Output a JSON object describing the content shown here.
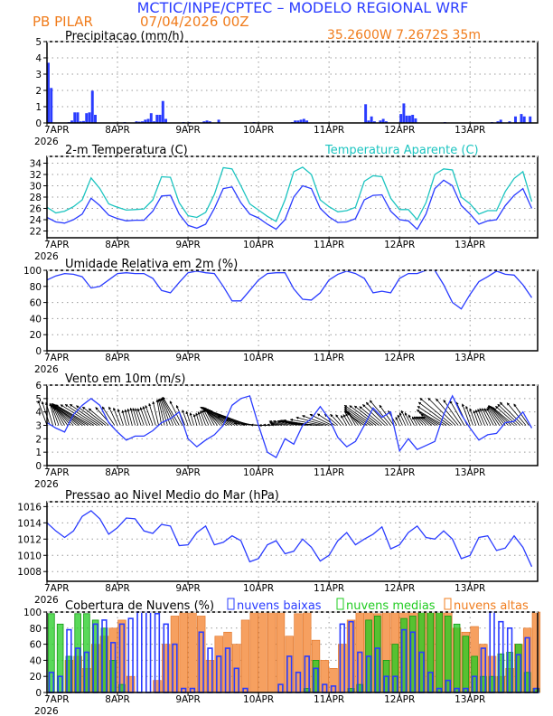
{
  "header": {
    "title": "MCTIC/INPE/CPTEC – MODELO REGIONAL WRF",
    "station": "PB PILAR",
    "run": "07/04/2026 00Z",
    "location": "35.2600W 7.2672S 35m"
  },
  "colors": {
    "blue": "#2a3cff",
    "cyan": "#1cc4c0",
    "orange": "#f07c1c",
    "orange_fill": "#f6a060",
    "green": "#22cc22",
    "title_blue": "#2a3cff",
    "title_orange": "#f07c1c"
  },
  "x_axis": {
    "unit": "hours since 07APR 00Z",
    "range": [
      0,
      167
    ],
    "tick_labels": [
      "7APR",
      "8APR",
      "9APR",
      "10APR",
      "11APR",
      "12APR",
      "13APR"
    ],
    "year_label": "2026"
  },
  "chart_data": [
    {
      "id": "precip",
      "type": "bar",
      "title": "Precipitacao (mm/h)",
      "ylim": [
        0,
        5
      ],
      "yticks": [
        0,
        1,
        2,
        3,
        4,
        5
      ],
      "series": [
        {
          "points": [
            [
              0,
              3.7
            ],
            [
              1,
              2.15
            ],
            [
              7,
              0.05
            ],
            [
              8,
              0.15
            ],
            [
              9,
              0.65
            ],
            [
              10,
              0.65
            ],
            [
              11,
              0.1
            ],
            [
              12,
              0.12
            ],
            [
              13,
              0.6
            ],
            [
              14,
              0.65
            ],
            [
              15,
              1.98
            ],
            [
              16,
              0.5
            ],
            [
              26,
              0.05
            ],
            [
              30,
              0.1
            ],
            [
              31,
              0.08
            ],
            [
              32,
              0.1
            ],
            [
              33,
              0.2
            ],
            [
              34,
              0.25
            ],
            [
              35,
              0.6
            ],
            [
              36,
              0.1
            ],
            [
              37,
              0.5
            ],
            [
              38,
              0.5
            ],
            [
              39,
              1.35
            ],
            [
              40,
              0.25
            ],
            [
              46,
              0.05
            ],
            [
              48,
              0.05
            ],
            [
              53,
              0.1
            ],
            [
              54,
              0.15
            ],
            [
              55,
              0.1
            ],
            [
              58,
              0.2
            ],
            [
              70,
              0.05
            ],
            [
              83,
              0.05
            ],
            [
              84,
              0.15
            ],
            [
              85,
              0.15
            ],
            [
              86,
              0.2
            ],
            [
              87,
              0.25
            ],
            [
              88,
              0.15
            ],
            [
              108,
              1.15
            ],
            [
              109,
              0.15
            ],
            [
              110,
              0.4
            ],
            [
              111,
              0.1
            ],
            [
              113,
              0.15
            ],
            [
              114,
              0.25
            ],
            [
              115,
              0.1
            ],
            [
              120,
              0.55
            ],
            [
              121,
              1.2
            ],
            [
              122,
              0.45
            ],
            [
              123,
              0.45
            ],
            [
              124,
              0.5
            ],
            [
              125,
              0.28
            ],
            [
              135,
              0.05
            ],
            [
              151,
              0.05
            ],
            [
              153,
              0.1
            ],
            [
              154,
              0.2
            ],
            [
              157,
              0.1
            ],
            [
              159,
              0.4
            ],
            [
              161,
              0.55
            ],
            [
              162,
              0.4
            ],
            [
              164,
              0.4
            ]
          ]
        }
      ]
    },
    {
      "id": "temp",
      "type": "line",
      "title": "2-m Temperatura (C)",
      "ylim": [
        20.8,
        35.2
      ],
      "yticks": [
        22,
        24,
        26,
        28,
        30,
        32,
        34
      ],
      "step_hours": 3,
      "series": [
        {
          "name": "2-m Temperatura (C)",
          "color": "blue",
          "values": [
            24.4,
            23.6,
            23.4,
            24.0,
            25.0,
            27.8,
            26.5,
            24.8,
            24.2,
            23.8,
            23.9,
            23.9,
            25.5,
            28.2,
            28.3,
            25.0,
            23.0,
            22.5,
            23.2,
            26.0,
            29.5,
            29.8,
            27.0,
            25.0,
            24.3,
            23.2,
            22.3,
            24.0,
            28.0,
            30.0,
            29.5,
            26.0,
            24.5,
            23.5,
            23.6,
            24.2,
            27.5,
            28.3,
            28.4,
            25.5,
            24.0,
            23.8,
            22.3,
            25.0,
            29.5,
            31.0,
            30.0,
            26.5,
            25.0,
            23.2,
            23.8,
            24.0,
            26.5,
            28.3,
            29.5,
            26.0
          ]
        },
        {
          "name": "Temperatura Aparente (C)",
          "color": "cyan",
          "values": [
            26.2,
            25.2,
            25.5,
            26.3,
            27.5,
            31.4,
            29.5,
            26.8,
            26.2,
            25.7,
            25.8,
            25.9,
            27.5,
            31.6,
            31.5,
            27.0,
            24.7,
            24.4,
            25.3,
            28.5,
            33.2,
            33.0,
            30.0,
            26.8,
            25.7,
            24.6,
            23.7,
            27.5,
            32.5,
            33.3,
            32.0,
            27.5,
            26.3,
            25.4,
            25.6,
            26.2,
            30.8,
            31.8,
            31.6,
            27.8,
            25.8,
            25.8,
            24.0,
            27.0,
            32.0,
            33.0,
            32.8,
            28.0,
            26.8,
            25.0,
            25.6,
            25.6,
            29.0,
            31.3,
            32.5,
            27.2
          ]
        }
      ]
    },
    {
      "id": "rh",
      "type": "line",
      "title": "Umidade Relativa em 2m (%)",
      "ylim": [
        0,
        100
      ],
      "yticks": [
        0,
        20,
        40,
        60,
        80,
        100
      ],
      "step_hours": 3,
      "series": [
        {
          "color": "blue",
          "values": [
            88,
            93,
            96,
            95,
            92,
            78,
            80,
            88,
            96,
            97,
            96,
            96,
            90,
            75,
            72,
            85,
            97,
            99,
            97,
            96,
            80,
            62,
            62,
            75,
            88,
            96,
            97,
            97,
            77,
            64,
            63,
            72,
            88,
            95,
            99,
            96,
            90,
            72,
            74,
            72,
            90,
            96,
            96,
            100,
            100,
            82,
            60,
            52,
            70,
            86,
            92,
            99,
            95,
            94,
            82,
            66
          ]
        }
      ]
    },
    {
      "id": "wind",
      "type": "line",
      "title": "Vento em 10m (m/s)",
      "ylim": [
        0,
        6
      ],
      "yticks": [
        0,
        1,
        2,
        3,
        4,
        5,
        6
      ],
      "step_hours": 3,
      "series": [
        {
          "name": "speed",
          "color": "blue",
          "values": [
            3.2,
            2.8,
            2.5,
            3.8,
            4.5,
            5.0,
            4.5,
            3.2,
            2.5,
            1.9,
            2.2,
            2.2,
            2.6,
            3.2,
            3.5,
            4.0,
            2.0,
            1.4,
            1.9,
            2.3,
            3.0,
            4.5,
            5.0,
            5.2,
            3.0,
            1.0,
            0.6,
            2.0,
            1.6,
            3.0,
            3.5,
            4.4,
            3.5,
            2.1,
            1.4,
            1.8,
            3.0,
            4.3,
            3.6,
            4.0,
            1.1,
            2.0,
            1.2,
            1.5,
            1.8,
            3.8,
            5.2,
            3.8,
            2.8,
            1.9,
            2.3,
            2.4,
            3.2,
            3.3,
            4.0,
            2.8
          ]
        },
        {
          "name": "direction_deg",
          "values": [
            160,
            165,
            150,
            135,
            125,
            120,
            125,
            130,
            155,
            165,
            165,
            160,
            160,
            170,
            160,
            150,
            160,
            165,
            160,
            150,
            130,
            120,
            115,
            110,
            95,
            90,
            100,
            105,
            110,
            100,
            100,
            95,
            110,
            130,
            150,
            150,
            125,
            125,
            130,
            140,
            155,
            155,
            150,
            135,
            125,
            120,
            130,
            145,
            160,
            160,
            155,
            150,
            140,
            130,
            135,
            150
          ]
        }
      ]
    },
    {
      "id": "pressure",
      "type": "line",
      "title": "Pressao ao Nivel Medio do Mar (hPa)",
      "ylim": [
        1006.8,
        1016.6
      ],
      "yticks": [
        1008,
        1010,
        1012,
        1014,
        1016
      ],
      "step_hours": 3,
      "series": [
        {
          "color": "blue",
          "values": [
            1014.0,
            1013.0,
            1012.2,
            1013.0,
            1014.8,
            1015.5,
            1014.5,
            1012.6,
            1013.4,
            1014.6,
            1014.5,
            1013.0,
            1012.7,
            1013.8,
            1013.6,
            1011.2,
            1011.3,
            1012.8,
            1013.6,
            1011.3,
            1011.6,
            1012.4,
            1011.8,
            1009.2,
            1009.6,
            1011.3,
            1011.8,
            1010.2,
            1010.5,
            1012.0,
            1011.0,
            1009.3,
            1010.0,
            1011.8,
            1012.8,
            1011.3,
            1012.0,
            1012.6,
            1013.5,
            1010.8,
            1011.3,
            1012.8,
            1013.6,
            1012.2,
            1012.0,
            1013.0,
            1012.0,
            1009.6,
            1010.0,
            1012.2,
            1012.4,
            1010.6,
            1010.9,
            1012.4,
            1011.0,
            1008.6
          ]
        }
      ]
    },
    {
      "id": "clouds",
      "type": "bar",
      "title": "Cobertura de Nuvens (%)",
      "ylim": [
        0,
        100
      ],
      "yticks": [
        0,
        20,
        40,
        60,
        80,
        100
      ],
      "step_hours": 3,
      "series": [
        {
          "name": "nuvens altas",
          "color": "orange",
          "values": [
            0,
            0,
            40,
            45,
            30,
            60,
            70,
            80,
            90,
            20,
            0,
            0,
            15,
            60,
            95,
            100,
            100,
            95,
            40,
            70,
            75,
            60,
            90,
            100,
            100,
            100,
            100,
            70,
            98,
            100,
            65,
            40,
            30,
            60,
            90,
            100,
            100,
            98,
            100,
            100,
            100,
            100,
            100,
            100,
            100,
            100,
            80,
            75,
            82,
            60,
            45,
            20,
            30,
            60,
            80,
            100
          ]
        },
        {
          "name": "nuvens medias",
          "color": "green",
          "values": [
            98,
            85,
            45,
            98,
            98,
            90,
            80,
            40,
            10,
            0,
            0,
            0,
            0,
            0,
            0,
            0,
            0,
            0,
            0,
            0,
            0,
            0,
            0,
            0,
            0,
            0,
            0,
            0,
            0,
            5,
            40,
            0,
            0,
            0,
            5,
            10,
            90,
            95,
            40,
            60,
            92,
            95,
            100,
            100,
            100,
            95,
            85,
            70,
            45,
            20,
            20,
            48,
            50,
            60,
            25,
            5
          ]
        },
        {
          "name": "nuvens baixas",
          "color": "blue",
          "values": [
            25,
            20,
            78,
            55,
            50,
            85,
            90,
            62,
            85,
            92,
            100,
            100,
            98,
            85,
            60,
            5,
            5,
            75,
            55,
            45,
            55,
            30,
            5,
            0,
            0,
            0,
            10,
            45,
            25,
            45,
            30,
            10,
            8,
            85,
            88,
            50,
            45,
            55,
            20,
            20,
            78,
            75,
            50,
            25,
            5,
            15,
            5,
            5,
            20,
            55,
            100,
            88,
            80,
            47,
            68,
            5
          ]
        }
      ]
    }
  ]
}
